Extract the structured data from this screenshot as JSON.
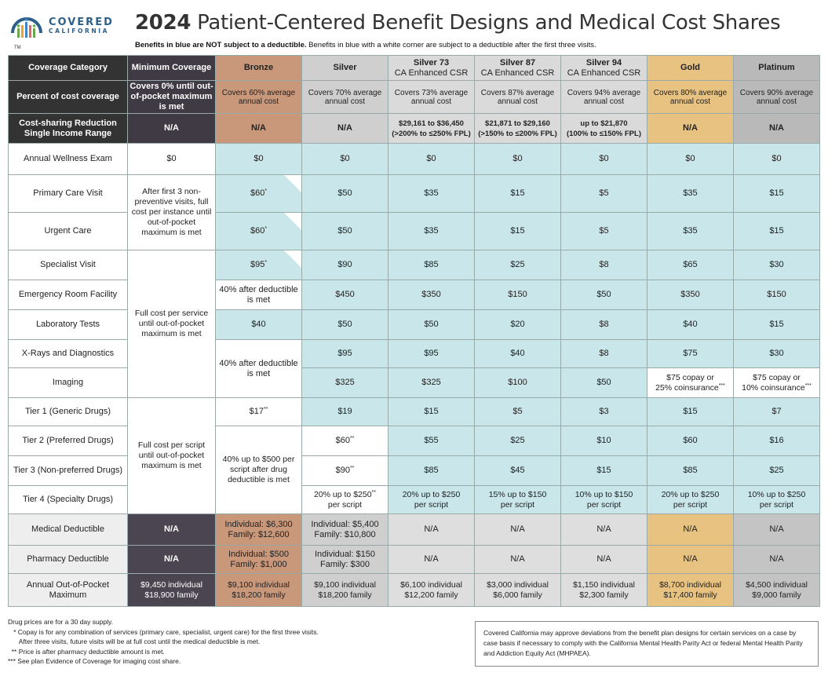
{
  "header": {
    "logo_line1": "COVERED",
    "logo_line2": "CALIFORNIA",
    "logo_tm": "TM",
    "title_year": "2024",
    "title_rest": " Patient-Centered Benefit Designs and Medical Cost Shares",
    "subtitle_bold": "Benefits in blue are NOT subject to a deductible.",
    "subtitle_rest": " Benefits in blue with a white corner are subject to a deductible after the first three visits."
  },
  "columns": [
    {
      "line1": "Coverage Category",
      "line2": ""
    },
    {
      "line1": "Minimum Coverage",
      "line2": ""
    },
    {
      "line1": "Bronze",
      "line2": ""
    },
    {
      "line1": "Silver",
      "line2": ""
    },
    {
      "line1": "Silver 73",
      "line2": "CA Enhanced CSR"
    },
    {
      "line1": "Silver 87",
      "line2": "CA Enhanced CSR"
    },
    {
      "line1": "Silver 94",
      "line2": "CA Enhanced CSR"
    },
    {
      "line1": "Gold",
      "line2": ""
    },
    {
      "line1": "Platinum",
      "line2": ""
    }
  ],
  "percent_row": {
    "label": "Percent of cost coverage",
    "cells": [
      "Covers 0% until out-of-pocket maximum is met",
      "Covers 60% average annual cost",
      "Covers 70% average annual cost",
      "Covers 73% average annual cost",
      "Covers 87% average annual cost",
      "Covers 94% average annual cost",
      "Covers 80% average annual cost",
      "Covers 90% average annual cost"
    ]
  },
  "csr_row": {
    "label_line1": "Cost-sharing Reduction",
    "label_line2": "Single Income Range",
    "cells": [
      {
        "l1": "N/A",
        "l2": ""
      },
      {
        "l1": "N/A",
        "l2": ""
      },
      {
        "l1": "N/A",
        "l2": ""
      },
      {
        "l1": "$29,161 to $36,450",
        "l2": "(>200% to ≤250% FPL)"
      },
      {
        "l1": "$21,871 to $29,160",
        "l2": "(>150% to ≤200% FPL)"
      },
      {
        "l1": "up to $21,870",
        "l2": "(100% to ≤150% FPL)"
      },
      {
        "l1": "N/A",
        "l2": ""
      },
      {
        "l1": "N/A",
        "l2": ""
      }
    ]
  },
  "rows": {
    "wellness": {
      "label": "Annual Wellness Exam",
      "min": "$0",
      "bronze": "$0",
      "silver": "$0",
      "s73": "$0",
      "s87": "$0",
      "s94": "$0",
      "gold": "$0",
      "plat": "$0"
    },
    "primary": {
      "label": "Primary Care Visit",
      "bronze": "$60",
      "silver": "$50",
      "s73": "$35",
      "s87": "$15",
      "s94": "$5",
      "gold": "$35",
      "plat": "$15"
    },
    "urgent": {
      "label": "Urgent Care",
      "bronze": "$60",
      "silver": "$50",
      "s73": "$35",
      "s87": "$15",
      "s94": "$5",
      "gold": "$35",
      "plat": "$15"
    },
    "specialist": {
      "label": "Specialist Visit",
      "bronze": "$95",
      "silver": "$90",
      "s73": "$85",
      "s87": "$25",
      "s94": "$8",
      "gold": "$65",
      "plat": "$30"
    },
    "er": {
      "label": "Emergency Room Facility",
      "bronze": "40% after deductible is met",
      "silver": "$450",
      "s73": "$350",
      "s87": "$150",
      "s94": "$50",
      "gold": "$350",
      "plat": "$150"
    },
    "lab": {
      "label": "Laboratory Tests",
      "bronze": "$40",
      "silver": "$50",
      "s73": "$50",
      "s87": "$20",
      "s94": "$8",
      "gold": "$40",
      "plat": "$15"
    },
    "xray": {
      "label": "X-Rays and Diagnostics",
      "silver": "$95",
      "s73": "$95",
      "s87": "$40",
      "s94": "$8",
      "gold": "$75",
      "plat": "$30"
    },
    "imaging": {
      "label": "Imaging",
      "silver": "$325",
      "s73": "$325",
      "s87": "$100",
      "s94": "$50",
      "gold_l1": "$75 copay or",
      "gold_l2": "25% coinsurance",
      "plat_l1": "$75 copay or",
      "plat_l2": "10% coinsurance"
    },
    "tier1": {
      "label": "Tier 1 (Generic Drugs)",
      "bronze": "$17",
      "silver": "$19",
      "s73": "$15",
      "s87": "$5",
      "s94": "$3",
      "gold": "$15",
      "plat": "$7"
    },
    "tier2": {
      "label": "Tier 2 (Preferred Drugs)",
      "silver": "$60",
      "s73": "$55",
      "s87": "$25",
      "s94": "$10",
      "gold": "$60",
      "plat": "$16"
    },
    "tier3": {
      "label": "Tier 3 (Non-preferred Drugs)",
      "silver": "$90",
      "s73": "$85",
      "s87": "$45",
      "s94": "$15",
      "gold": "$85",
      "plat": "$25"
    },
    "tier4": {
      "label": "Tier 4 (Specialty Drugs)",
      "silver_l1": "20% up to $250",
      "silver_l2": "per script",
      "s73_l1": "20% up to $250",
      "s73_l2": "per script",
      "s87_l1": "15% up to $150",
      "s87_l2": "per script",
      "s94_l1": "10% up to $150",
      "s94_l2": "per script",
      "gold_l1": "20% up to $250",
      "gold_l2": "per script",
      "plat_l1": "10% up to $250",
      "plat_l2": "per script"
    },
    "med_ded": {
      "label": "Medical Deductible",
      "min": "N/A",
      "bronze_l1": "Individual: $6,300",
      "bronze_l2": "Family: $12,600",
      "silver_l1": "Individual: $5,400",
      "silver_l2": "Family: $10,800",
      "s73": "N/A",
      "s87": "N/A",
      "s94": "N/A",
      "gold": "N/A",
      "plat": "N/A"
    },
    "ph_ded": {
      "label": "Pharmacy Deductible",
      "min": "N/A",
      "bronze_l1": "Individual: $500",
      "bronze_l2": "Family: $1,000",
      "silver_l1": "Individual: $150",
      "silver_l2": "Family: $300",
      "s73": "N/A",
      "s87": "N/A",
      "s94": "N/A",
      "gold": "N/A",
      "plat": "N/A"
    },
    "oop": {
      "label_l1": "Annual Out-of-Pocket",
      "label_l2": "Maximum",
      "min_l1": "$9,450 individual",
      "min_l2": "$18,900 family",
      "bronze_l1": "$9,100 individual",
      "bronze_l2": "$18,200 family",
      "silver_l1": "$9,100 individual",
      "silver_l2": "$18,200 family",
      "s73_l1": "$6,100 individual",
      "s73_l2": "$12,200 family",
      "s87_l1": "$3,000 individual",
      "s87_l2": "$6,000 family",
      "s94_l1": "$1,150 individual",
      "s94_l2": "$2,300 family",
      "gold_l1": "$8,700 individual",
      "gold_l2": "$17,400 family",
      "plat_l1": "$4,500 individual",
      "plat_l2": "$9,000 family"
    }
  },
  "merged": {
    "min_primary_urgent": "After first 3 non-preventive visits, full cost per instance until out-of-pocket maximum is met",
    "min_specialist_imaging": "Full cost per service until out-of-pocket maximum is met",
    "bronze_xray_imaging": "40% after deductible is met",
    "min_drugs": "Full cost per script until out-of-pocket maximum is met",
    "bronze_drugs": "40% up to $500 per script after drug deductible is met"
  },
  "marks": {
    "single": "*",
    "double": "**",
    "triple": "***"
  },
  "notes": [
    "Drug prices are for a 30 day supply.",
    "   * Copay is for any combination of services (primary care, specialist, urgent care) for the first three visits.",
    "      After three visits, future visits will be at full cost until the medical deductible is met.",
    "  ** Price is after pharmacy deductible amount is met.",
    "*** See plan Evidence of Coverage for imaging cost share."
  ],
  "disclaimer": "Covered California may approve deviations from the benefit plan designs for certain services on a case by case basis if necessary to comply with the California Mental Health Parity Act or federal Mental Health Parity and Addiction Equity Act (MHPAEA).",
  "colors": {
    "bronze": "#c9977a",
    "silver": "#cfcfcf",
    "gold": "#e7c280",
    "platinum": "#b9b9b9",
    "blue": "#c9e6ea",
    "dark": "#3f3a44",
    "logo_blue": "#2c5f8a"
  }
}
